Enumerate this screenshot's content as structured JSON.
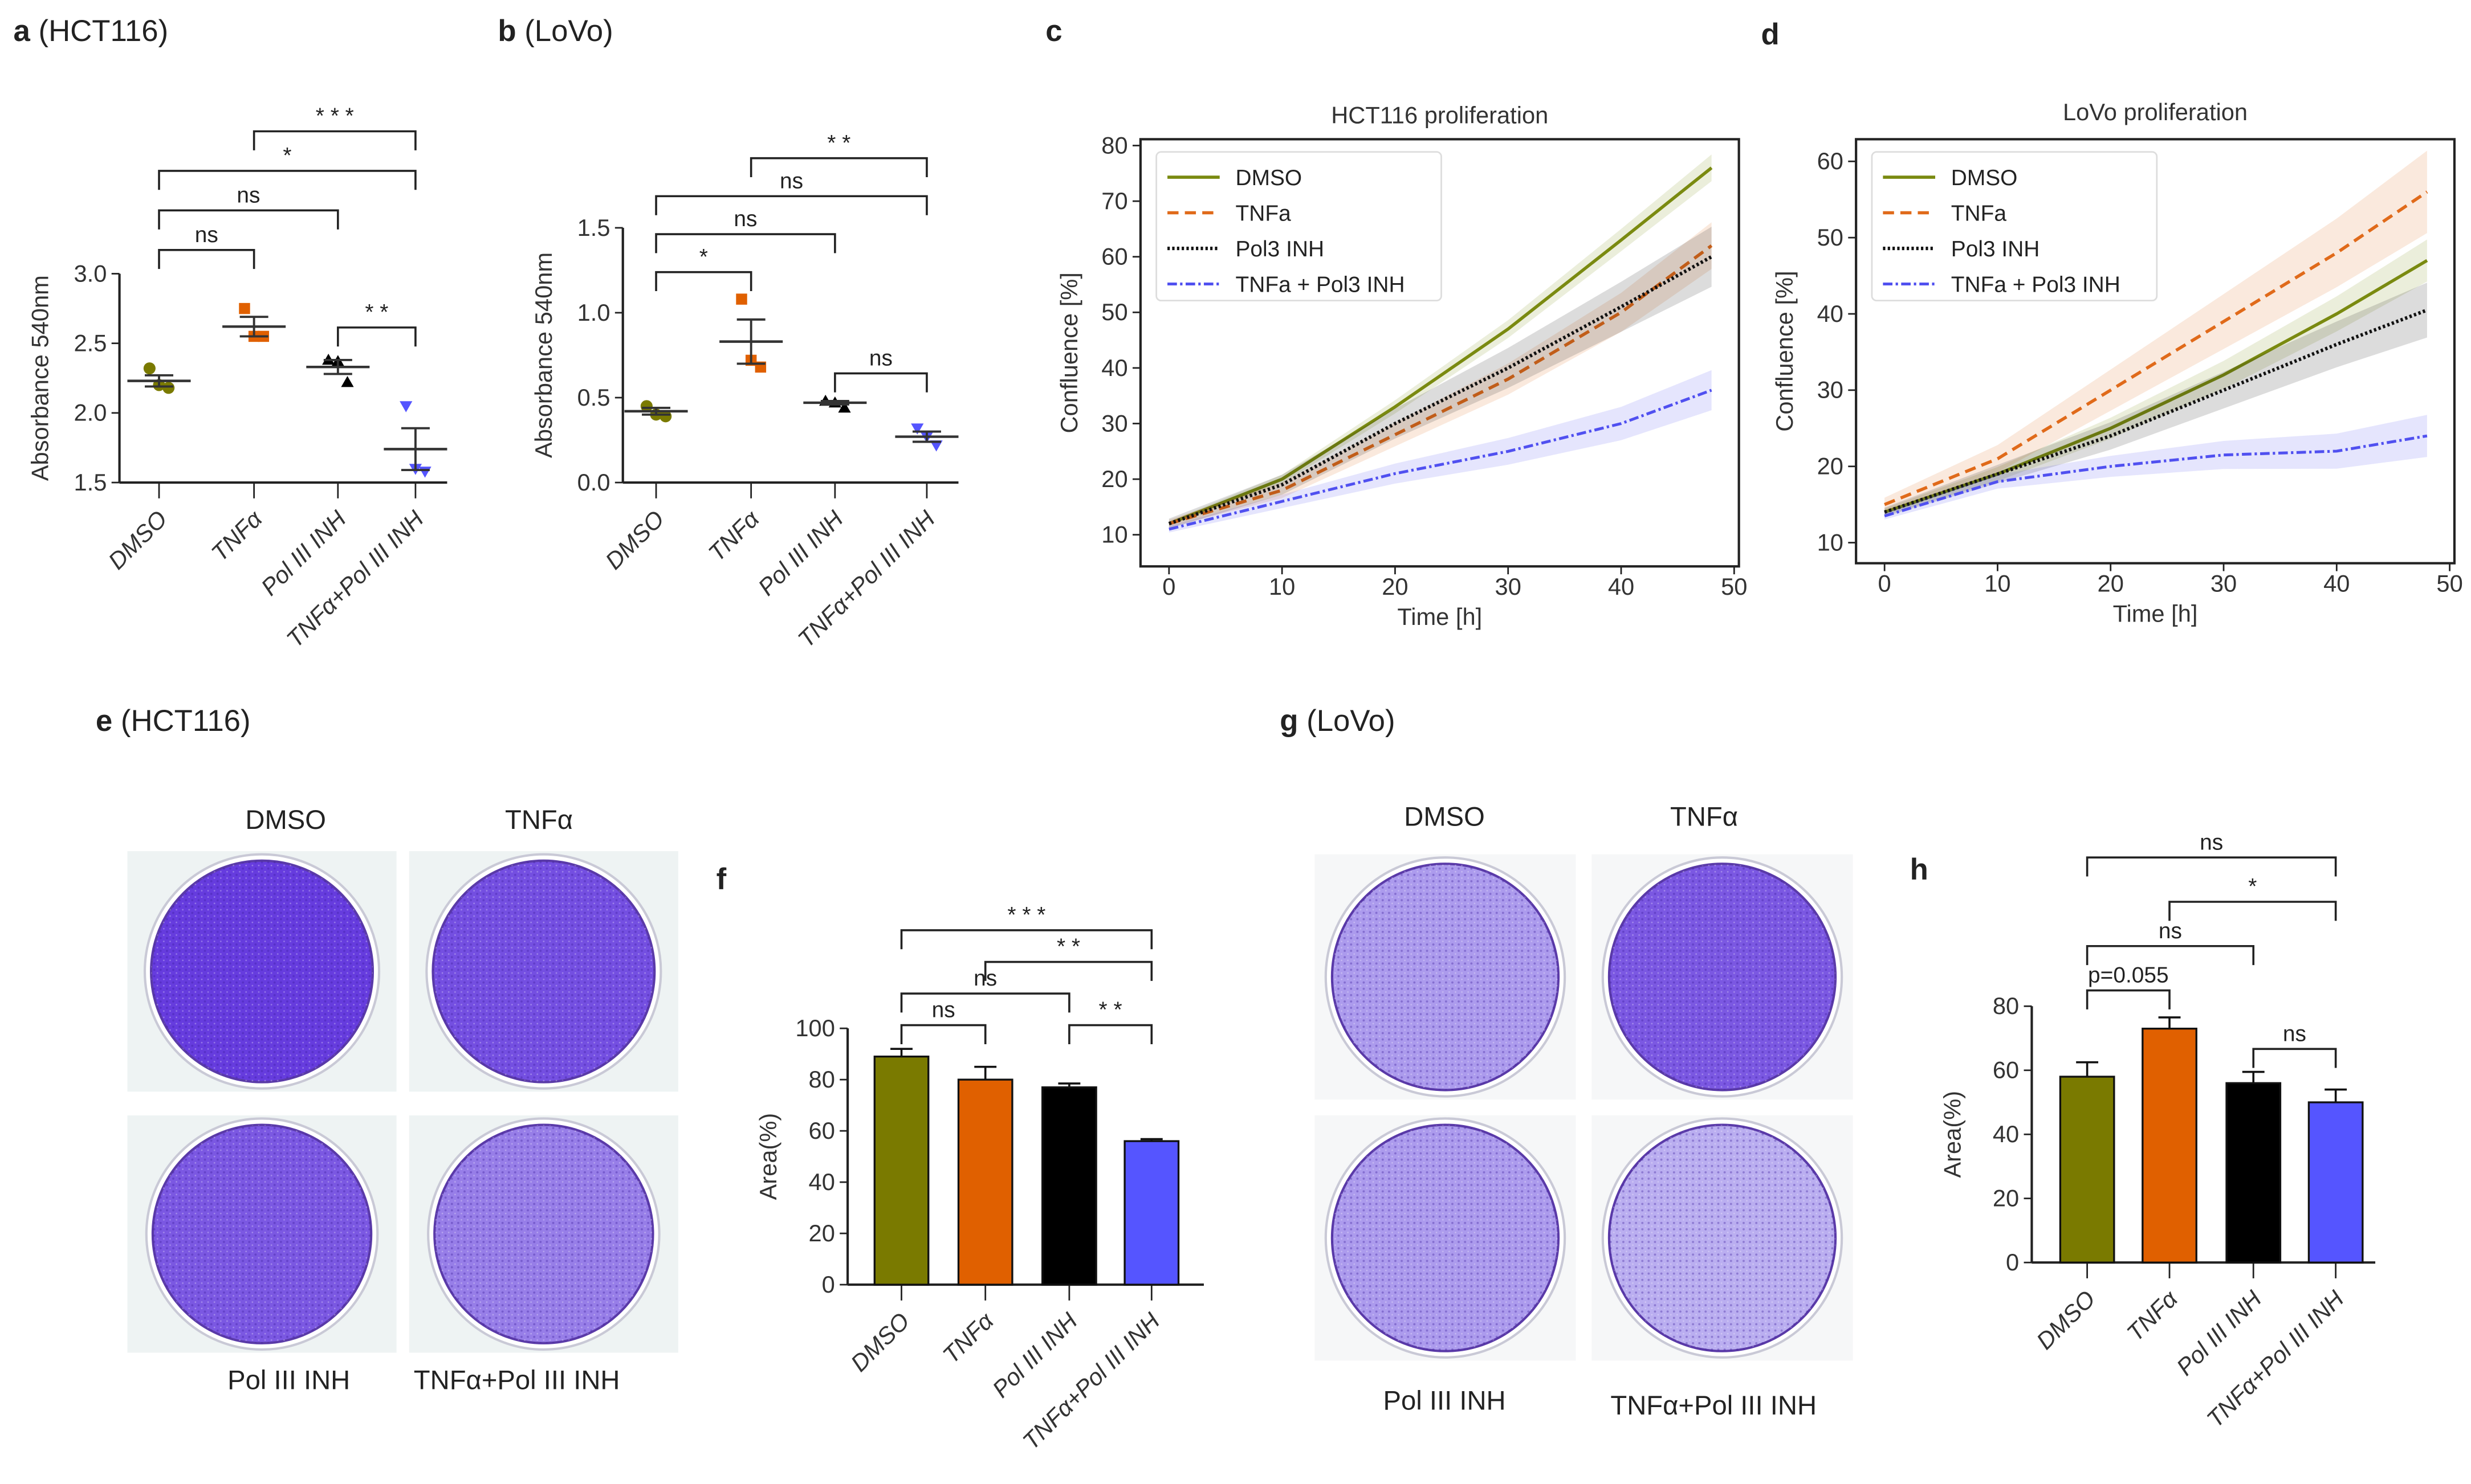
{
  "groups": [
    "DMSO",
    "TNFα",
    "Pol III INH",
    "TNFα+Pol III INH"
  ],
  "colors": {
    "DMSO": "#7a7a00",
    "TNF": "#e06000",
    "Pol": "#000000",
    "Combo": "#5555ff"
  },
  "panel_labels": {
    "a": {
      "letter": "a",
      "text": " (HCT116)"
    },
    "b": {
      "letter": "b",
      "text": " (LoVo)"
    },
    "c": {
      "letter": "c",
      "text": ""
    },
    "d": {
      "letter": "d",
      "text": ""
    },
    "e": {
      "letter": "e",
      "text": " (HCT116)"
    },
    "f": {
      "letter": "f",
      "text": ""
    },
    "g": {
      "letter": "g",
      "text": " (LoVo)"
    },
    "h": {
      "letter": "h",
      "text": ""
    }
  },
  "chart_data": [
    {
      "id": "a",
      "type": "scatter",
      "ylabel": "Absorbance 540nm",
      "ylim": [
        1.5,
        3.0
      ],
      "yticks": [
        "1.5",
        "2.0",
        "2.5",
        "3.0"
      ],
      "points": [
        [
          2.32,
          2.2,
          2.18
        ],
        [
          2.75,
          2.55,
          2.55
        ],
        [
          2.38,
          2.37,
          2.22
        ],
        [
          2.05,
          1.6,
          1.58
        ]
      ],
      "means": [
        2.23,
        2.62,
        2.33,
        1.74
      ],
      "sem": [
        0.04,
        0.07,
        0.05,
        0.15
      ],
      "significance": [
        {
          "from": 0,
          "to": 1,
          "label": "ns",
          "level": 0
        },
        {
          "from": 2,
          "to": 3,
          "label": "* *",
          "level": -1
        },
        {
          "from": 0,
          "to": 2,
          "label": "ns",
          "level": 1
        },
        {
          "from": 0,
          "to": 3,
          "label": "*",
          "level": 2
        },
        {
          "from": 1,
          "to": 3,
          "label": "* * *",
          "level": 3
        }
      ]
    },
    {
      "id": "b",
      "type": "scatter",
      "ylabel": "Absorbance 540nm",
      "ylim": [
        0.0,
        1.5
      ],
      "yticks": [
        "0.0",
        "0.5",
        "1.0",
        "1.5"
      ],
      "points": [
        [
          0.45,
          0.4,
          0.39
        ],
        [
          1.08,
          0.72,
          0.68
        ],
        [
          0.48,
          0.47,
          0.44
        ],
        [
          0.32,
          0.27,
          0.22
        ]
      ],
      "means": [
        0.42,
        0.83,
        0.47,
        0.27
      ],
      "sem": [
        0.02,
        0.13,
        0.01,
        0.03
      ],
      "significance": [
        {
          "from": 2,
          "to": 3,
          "label": "ns",
          "level": -1
        },
        {
          "from": 0,
          "to": 1,
          "label": "*",
          "level": 0
        },
        {
          "from": 0,
          "to": 2,
          "label": "ns",
          "level": 1
        },
        {
          "from": 0,
          "to": 3,
          "label": "ns",
          "level": 2
        },
        {
          "from": 1,
          "to": 3,
          "label": "* *",
          "level": 3
        }
      ]
    },
    {
      "id": "c",
      "type": "line",
      "title": "HCT116 proliferation",
      "xlabel": "Time [h]",
      "ylabel": "Confluence [%]",
      "xlim": [
        0,
        50
      ],
      "ylim": [
        10,
        80
      ],
      "xticks": [
        "0",
        "10",
        "20",
        "30",
        "40",
        "50"
      ],
      "yticks": [
        "10",
        "20",
        "30",
        "40",
        "50",
        "60",
        "70",
        "80"
      ],
      "legend": "top-left",
      "x": [
        0,
        10,
        20,
        30,
        40,
        48
      ],
      "series": [
        {
          "name": "DMSO",
          "values": [
            12,
            20,
            33,
            47,
            63,
            76
          ],
          "band": 2
        },
        {
          "name": "TNFa",
          "values": [
            12,
            18,
            28,
            38,
            50,
            62
          ],
          "band": 3.5
        },
        {
          "name": "Pol3 INH",
          "values": [
            12,
            19,
            30,
            40,
            51,
            60
          ],
          "band": 4.5
        },
        {
          "name": "TNFa + Pol3 INH",
          "values": [
            11,
            16,
            21,
            25,
            30,
            36
          ],
          "band": 3
        }
      ]
    },
    {
      "id": "d",
      "type": "line",
      "title": "LoVo proliferation",
      "xlabel": "Time [h]",
      "ylabel": "Confluence [%]",
      "xlim": [
        0,
        50
      ],
      "ylim": [
        10,
        62
      ],
      "xticks": [
        "0",
        "10",
        "20",
        "30",
        "40",
        "50"
      ],
      "yticks": [
        "10",
        "20",
        "30",
        "40",
        "50",
        "60"
      ],
      "tickvals": [
        10,
        20,
        30,
        40,
        50,
        60
      ],
      "legend": "top-left",
      "x": [
        0,
        10,
        20,
        30,
        40,
        48
      ],
      "series": [
        {
          "name": "DMSO",
          "values": [
            14,
            19,
            25,
            32,
            40,
            47
          ],
          "band": 2.3
        },
        {
          "name": "TNFa",
          "values": [
            15,
            21,
            30,
            39,
            48,
            56
          ],
          "band": 4.5
        },
        {
          "name": "Pol3 INH",
          "values": [
            14,
            19,
            24,
            30,
            36,
            40.5
          ],
          "band": 3
        },
        {
          "name": "TNFa + Pol3 INH",
          "values": [
            13.5,
            18,
            20,
            21.5,
            22,
            24
          ],
          "band": 2.3
        }
      ]
    },
    {
      "id": "f",
      "type": "bar",
      "ylabel": "Area(%)",
      "ylim": [
        0,
        100
      ],
      "yticks": [
        "0",
        "20",
        "40",
        "60",
        "80",
        "100"
      ],
      "values": [
        89,
        80,
        77,
        56
      ],
      "sem": [
        3,
        5,
        1.5,
        0.8
      ],
      "significance": [
        {
          "from": 0,
          "to": 1,
          "label": "ns",
          "level": 0
        },
        {
          "from": 2,
          "to": 3,
          "label": "* *",
          "level": 0
        },
        {
          "from": 0,
          "to": 2,
          "label": "ns",
          "level": 1
        },
        {
          "from": 1,
          "to": 3,
          "label": "* *",
          "level": 2
        },
        {
          "from": 0,
          "to": 3,
          "label": "* * *",
          "level": 3
        }
      ]
    },
    {
      "id": "h",
      "type": "bar",
      "ylabel": "Area(%)",
      "ylim": [
        0,
        80
      ],
      "yticks": [
        "0",
        "20",
        "40",
        "60",
        "80"
      ],
      "values": [
        58,
        73,
        56,
        50
      ],
      "sem": [
        4.5,
        3.5,
        3.5,
        4
      ],
      "significance": [
        {
          "from": 0,
          "to": 1,
          "label": "p=0.055",
          "level": 0
        },
        {
          "from": 2,
          "to": 3,
          "label": "ns",
          "level": -1
        },
        {
          "from": 0,
          "to": 2,
          "label": "ns",
          "level": 1
        },
        {
          "from": 1,
          "to": 3,
          "label": "*",
          "level": 2
        },
        {
          "from": 0,
          "to": 3,
          "label": "ns",
          "level": 3
        }
      ]
    }
  ],
  "plates": {
    "e": {
      "labels": [
        "DMSO",
        "TNFα",
        "Pol III INH",
        "TNFα+Pol III INH"
      ],
      "stain": [
        0.95,
        0.85,
        0.8,
        0.6
      ]
    },
    "g": {
      "labels": [
        "DMSO",
        "TNFα",
        "Pol III INH",
        "TNFα+Pol III INH"
      ],
      "stain": [
        0.45,
        0.8,
        0.45,
        0.35
      ]
    }
  }
}
